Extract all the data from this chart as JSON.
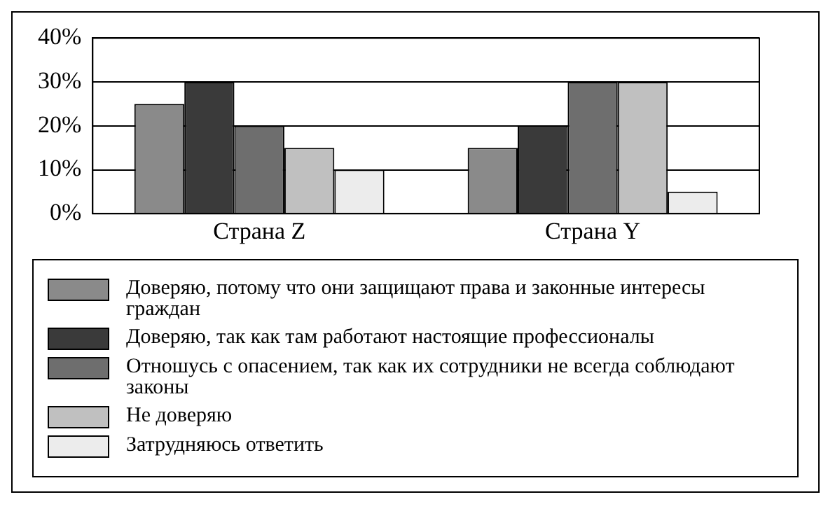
{
  "chart_data": {
    "type": "bar",
    "categories": [
      "Страна Z",
      "Страна Y"
    ],
    "series": [
      {
        "name": "Доверяю, потому что они защищают права и законные интересы граждан",
        "color": "#8a8a8a",
        "values": [
          25,
          15
        ]
      },
      {
        "name": "Доверяю, так как там работают настоящие профессионалы",
        "color": "#3a3a3a",
        "values": [
          30,
          20
        ]
      },
      {
        "name": "Отношусь с опасением, так как их сотрудники не всегда соблюдают законы",
        "color": "#6e6e6e",
        "values": [
          20,
          30
        ]
      },
      {
        "name": "Не доверяю",
        "color": "#c0c0c0",
        "values": [
          15,
          30
        ]
      },
      {
        "name": "Затрудняюсь ответить",
        "color": "#ececec",
        "values": [
          10,
          5
        ]
      }
    ],
    "ylim": [
      0,
      40
    ],
    "yticks": [
      {
        "value": 0,
        "label": "0%"
      },
      {
        "value": 10,
        "label": "10%"
      },
      {
        "value": 20,
        "label": "20%"
      },
      {
        "value": 30,
        "label": "30%"
      },
      {
        "value": 40,
        "label": "40%"
      }
    ],
    "grid": "y",
    "legend": "bottom"
  }
}
